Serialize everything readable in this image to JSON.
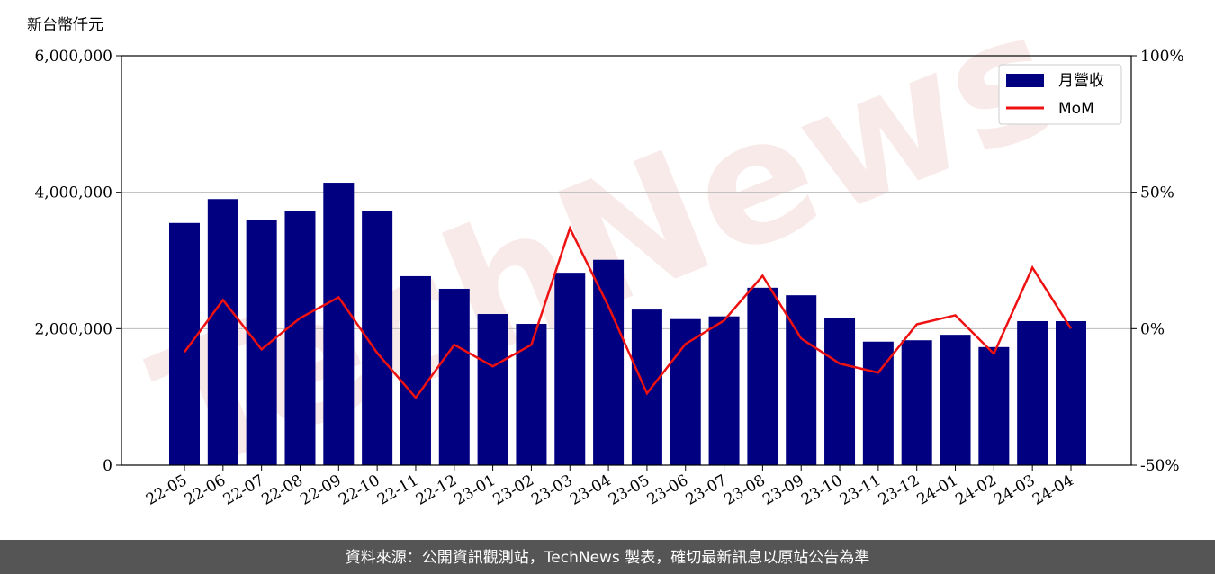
{
  "chart_data": {
    "type": "bar_line",
    "y_unit_label": "新台幣仟元",
    "watermark": "TechNews",
    "source": "資料來源：公開資訊觀測站，TechNews 製表，確切最新訊息以原站公告為準",
    "categories": [
      "22-05",
      "22-06",
      "22-07",
      "22-08",
      "22-09",
      "22-10",
      "22-11",
      "22-12",
      "23-01",
      "23-02",
      "23-03",
      "23-04",
      "23-05",
      "23-06",
      "23-07",
      "23-08",
      "23-09",
      "23-10",
      "23-11",
      "23-12",
      "24-01",
      "24-02",
      "24-03",
      "24-04"
    ],
    "series": [
      {
        "name": "月營收",
        "color": "#000080",
        "kind": "bar",
        "values": [
          3550000,
          3900000,
          3600000,
          3720000,
          4140000,
          3730000,
          2770000,
          2585000,
          2215000,
          2070000,
          2820000,
          3010000,
          2280000,
          2140000,
          2180000,
          2600000,
          2490000,
          2160000,
          1810000,
          1830000,
          1910000,
          1730000,
          2110000,
          2110000
        ]
      },
      {
        "name": "MoM",
        "color": "#ee1111",
        "kind": "line",
        "axis": "y2",
        "values": [
          -8.6,
          10.5,
          -7.6,
          3.9,
          11.5,
          -8.9,
          -25.3,
          -5.9,
          -13.8,
          -5.9,
          36.8,
          8.2,
          -23.7,
          -5.6,
          3.0,
          19.4,
          -3.6,
          -12.8,
          -16.1,
          1.6,
          4.9,
          -9.2,
          22.4,
          0
        ]
      }
    ],
    "ylim": [
      0,
      6000000
    ],
    "yticks": [
      0,
      {
        "value": 2000000,
        "label": "2,000,000"
      },
      {
        "value": 4000000,
        "label": "4,000,000"
      },
      {
        "value": 6000000,
        "label": "6,000,000"
      }
    ],
    "y2lim": [
      -50,
      100
    ],
    "y2ticks": [
      {
        "value": -50,
        "label": "-50%"
      },
      {
        "value": 0,
        "label": "0%"
      },
      {
        "value": 50,
        "label": "50%"
      },
      {
        "value": 100,
        "label": "100%"
      }
    ],
    "grid": true,
    "legend": "upper right"
  }
}
